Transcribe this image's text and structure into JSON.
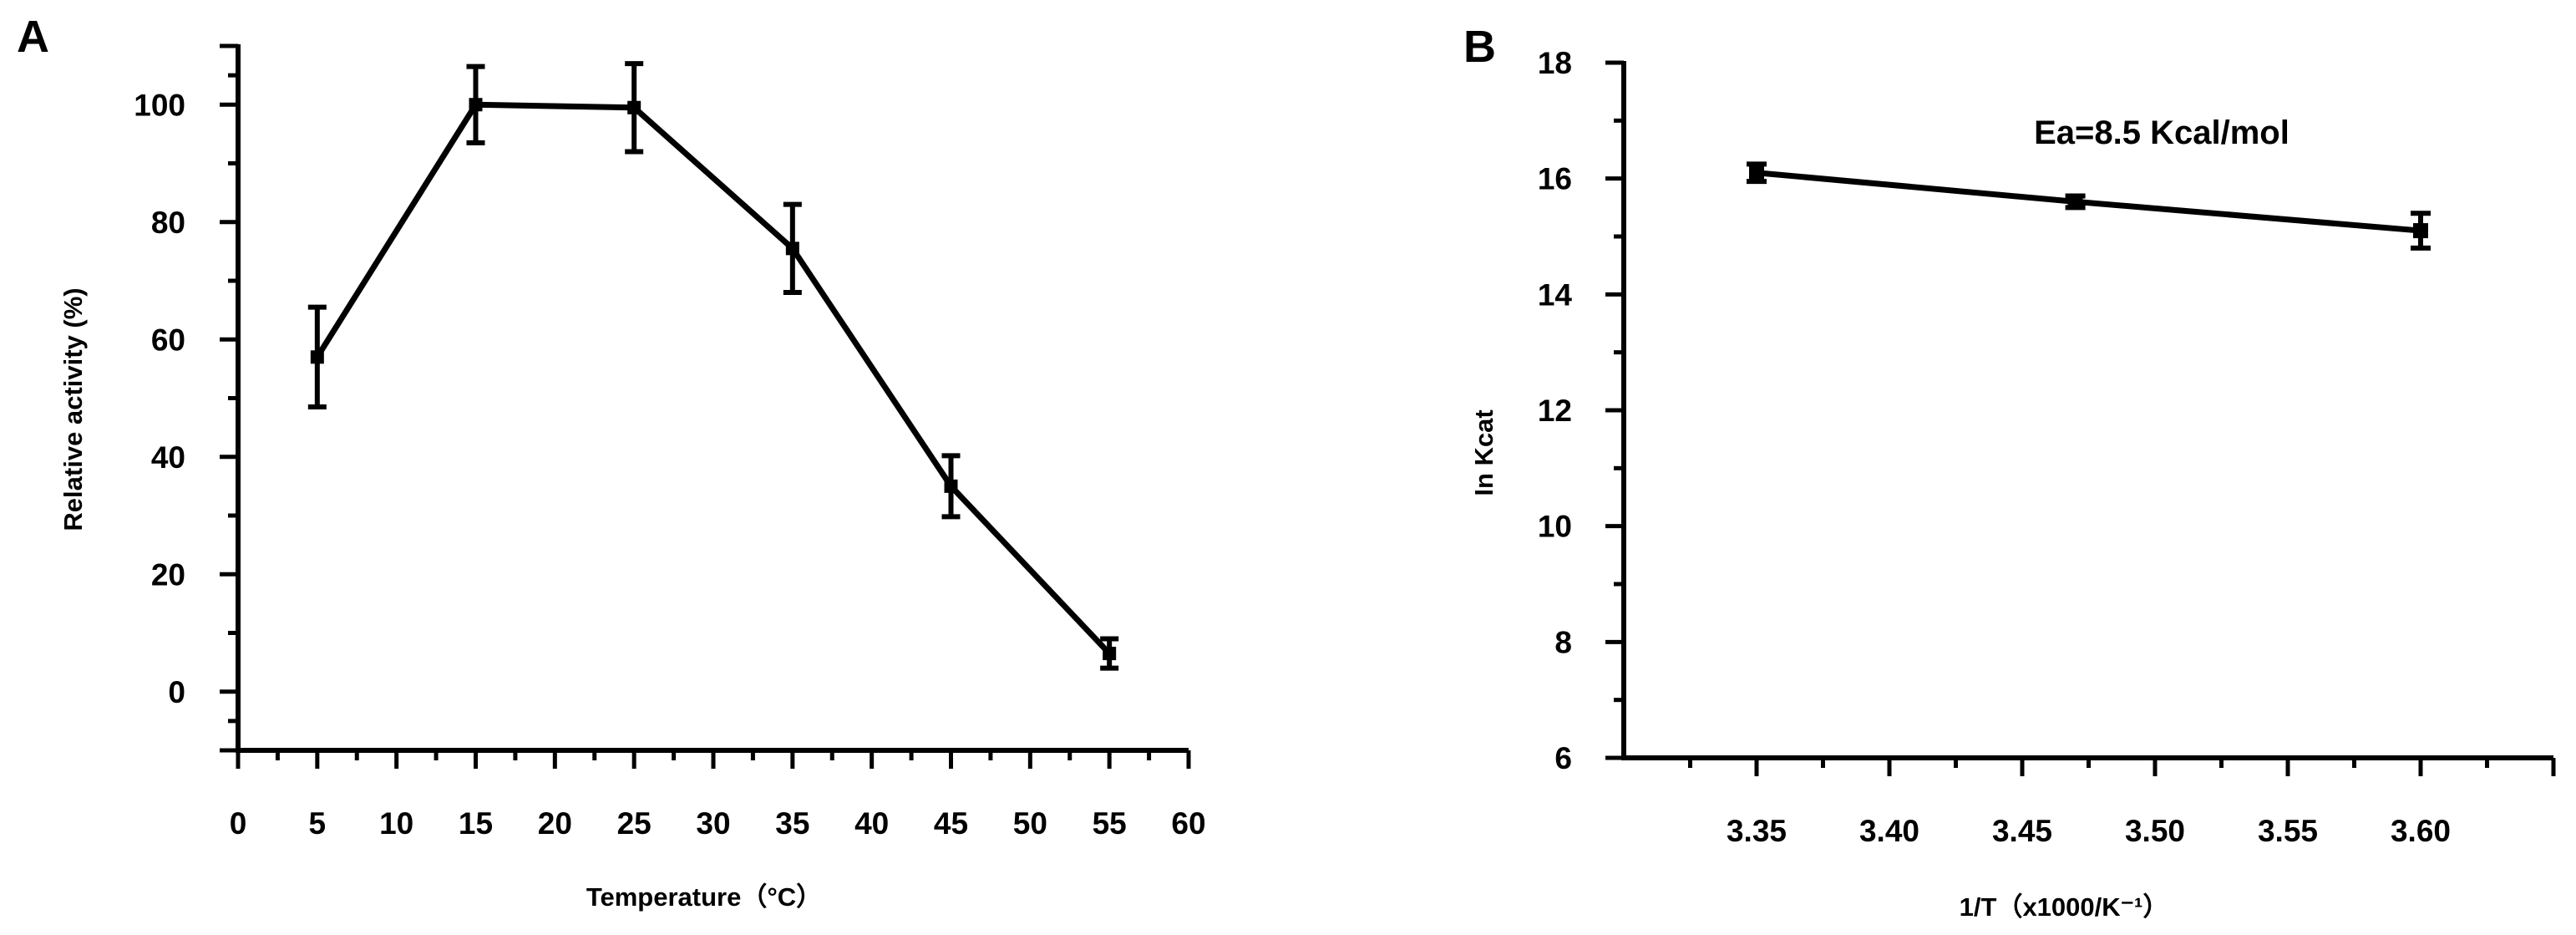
{
  "chart_data": [
    {
      "id": "A",
      "panel_label": "A",
      "type": "line",
      "xlabel": "Temperature（°C）",
      "ylabel": "Relative activity (%)",
      "xlim": [
        0,
        60
      ],
      "ylim": [
        -10,
        110
      ],
      "x_ticks": [
        0,
        5,
        10,
        15,
        20,
        25,
        30,
        35,
        40,
        45,
        50,
        55,
        60
      ],
      "y_ticks": [
        0,
        20,
        40,
        60,
        80,
        100
      ],
      "grid": false,
      "series": [
        {
          "x": [
            5,
            15,
            25,
            35,
            45,
            55
          ],
          "y": [
            57,
            100,
            99.5,
            75.5,
            35,
            6.5
          ],
          "err": [
            8.5,
            6.5,
            7.5,
            7.5,
            5.2,
            2.5
          ]
        }
      ]
    },
    {
      "id": "B",
      "panel_label": "B",
      "type": "line",
      "xlabel": "1/T（x1000/K⁻¹）",
      "ylabel": "In Kcat",
      "xlim": [
        3.3,
        3.65
      ],
      "ylim": [
        6,
        18
      ],
      "x_ticks": [
        3.35,
        3.4,
        3.45,
        3.5,
        3.55,
        3.6
      ],
      "y_ticks": [
        6,
        8,
        10,
        12,
        14,
        16,
        18
      ],
      "grid": false,
      "annotation": "Ea=8.5 Kcal/mol",
      "series": [
        {
          "x": [
            3.35,
            3.47,
            3.6
          ],
          "y": [
            16.1,
            15.6,
            15.1
          ],
          "err": [
            0.15,
            0.1,
            0.3
          ]
        }
      ]
    }
  ]
}
